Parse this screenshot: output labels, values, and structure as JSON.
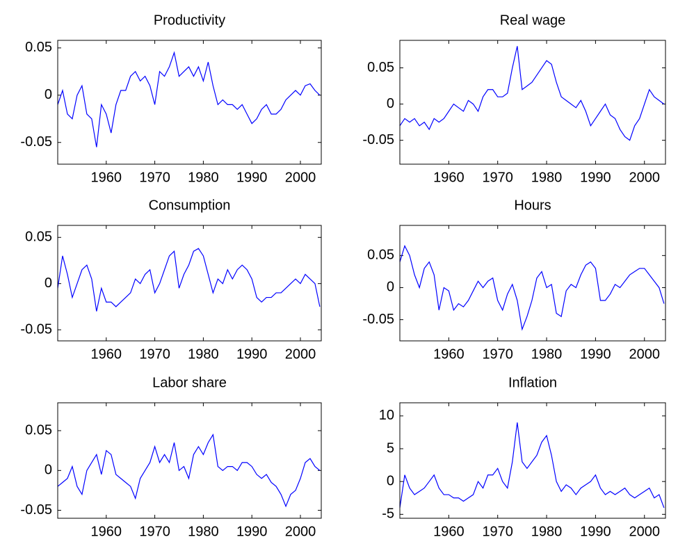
{
  "chart_data": [
    {
      "type": "line",
      "title": "Productivity",
      "color": "#0000ff",
      "x": [
        1950,
        1951,
        1952,
        1953,
        1954,
        1955,
        1956,
        1957,
        1958,
        1959,
        1960,
        1961,
        1962,
        1963,
        1964,
        1965,
        1966,
        1967,
        1968,
        1969,
        1970,
        1971,
        1972,
        1973,
        1974,
        1975,
        1976,
        1977,
        1978,
        1979,
        1980,
        1981,
        1982,
        1983,
        1984,
        1985,
        1986,
        1987,
        1988,
        1989,
        1990,
        1991,
        1992,
        1993,
        1994,
        1995,
        1996,
        1997,
        1998,
        1999,
        2000,
        2001,
        2002,
        2003,
        2004
      ],
      "values": [
        -0.01,
        0.005,
        -0.02,
        -0.025,
        0.0,
        0.01,
        -0.02,
        -0.025,
        -0.055,
        -0.01,
        -0.02,
        -0.04,
        -0.01,
        0.005,
        0.005,
        0.02,
        0.025,
        0.015,
        0.02,
        0.01,
        -0.01,
        0.025,
        0.02,
        0.03,
        0.045,
        0.02,
        0.025,
        0.03,
        0.02,
        0.03,
        0.015,
        0.035,
        0.01,
        -0.01,
        -0.005,
        -0.01,
        -0.01,
        -0.015,
        -0.01,
        -0.02,
        -0.03,
        -0.025,
        -0.015,
        -0.01,
        -0.02,
        -0.02,
        -0.015,
        -0.005,
        0.0,
        0.005,
        0.0,
        0.01,
        0.012,
        0.005,
        0.0
      ],
      "xlim": [
        1950,
        2004.3
      ],
      "xticks": [
        1960,
        1970,
        1980,
        1990,
        2000
      ],
      "ylim": [
        -0.073,
        0.058
      ],
      "yticks": [
        -0.05,
        0,
        0.05
      ]
    },
    {
      "type": "line",
      "title": "Real wage",
      "color": "#0000ff",
      "x": [
        1950,
        1951,
        1952,
        1953,
        1954,
        1955,
        1956,
        1957,
        1958,
        1959,
        1960,
        1961,
        1962,
        1963,
        1964,
        1965,
        1966,
        1967,
        1968,
        1969,
        1970,
        1971,
        1972,
        1973,
        1974,
        1975,
        1976,
        1977,
        1978,
        1979,
        1980,
        1981,
        1982,
        1983,
        1984,
        1985,
        1986,
        1987,
        1988,
        1989,
        1990,
        1991,
        1992,
        1993,
        1994,
        1995,
        1996,
        1997,
        1998,
        1999,
        2000,
        2001,
        2002,
        2003,
        2004
      ],
      "values": [
        -0.03,
        -0.02,
        -0.025,
        -0.02,
        -0.03,
        -0.025,
        -0.035,
        -0.02,
        -0.025,
        -0.02,
        -0.01,
        0.0,
        -0.005,
        -0.01,
        0.005,
        0.0,
        -0.01,
        0.01,
        0.02,
        0.02,
        0.01,
        0.01,
        0.015,
        0.05,
        0.08,
        0.02,
        0.025,
        0.03,
        0.04,
        0.05,
        0.06,
        0.055,
        0.03,
        0.01,
        0.005,
        0.0,
        -0.005,
        0.005,
        -0.01,
        -0.03,
        -0.02,
        -0.01,
        0.0,
        -0.015,
        -0.02,
        -0.035,
        -0.045,
        -0.05,
        -0.03,
        -0.02,
        0.0,
        0.02,
        0.01,
        0.005,
        0.0
      ],
      "xlim": [
        1950,
        2004.3
      ],
      "xticks": [
        1960,
        1970,
        1980,
        1990,
        2000
      ],
      "ylim": [
        -0.083,
        0.088
      ],
      "yticks": [
        -0.05,
        0,
        0.05
      ]
    },
    {
      "type": "line",
      "title": "Consumption",
      "color": "#0000ff",
      "x": [
        1950,
        1951,
        1952,
        1953,
        1954,
        1955,
        1956,
        1957,
        1958,
        1959,
        1960,
        1961,
        1962,
        1963,
        1964,
        1965,
        1966,
        1967,
        1968,
        1969,
        1970,
        1971,
        1972,
        1973,
        1974,
        1975,
        1976,
        1977,
        1978,
        1979,
        1980,
        1981,
        1982,
        1983,
        1984,
        1985,
        1986,
        1987,
        1988,
        1989,
        1990,
        1991,
        1992,
        1993,
        1994,
        1995,
        1996,
        1997,
        1998,
        1999,
        2000,
        2001,
        2002,
        2003,
        2004
      ],
      "values": [
        -0.005,
        0.03,
        0.01,
        -0.015,
        0.0,
        0.015,
        0.02,
        0.005,
        -0.03,
        -0.005,
        -0.02,
        -0.02,
        -0.025,
        -0.02,
        -0.015,
        -0.01,
        0.005,
        0.0,
        0.01,
        0.015,
        -0.01,
        0.0,
        0.015,
        0.03,
        0.035,
        -0.005,
        0.01,
        0.02,
        0.035,
        0.038,
        0.03,
        0.01,
        -0.01,
        0.005,
        0.0,
        0.015,
        0.005,
        0.015,
        0.02,
        0.015,
        0.005,
        -0.015,
        -0.02,
        -0.015,
        -0.015,
        -0.01,
        -0.01,
        -0.005,
        0.0,
        0.005,
        0.0,
        0.01,
        0.005,
        0.0,
        -0.025
      ],
      "xlim": [
        1950,
        2004.3
      ],
      "xticks": [
        1960,
        1970,
        1980,
        1990,
        2000
      ],
      "ylim": [
        -0.062,
        0.063
      ],
      "yticks": [
        -0.05,
        0,
        0.05
      ]
    },
    {
      "type": "line",
      "title": "Hours",
      "color": "#0000ff",
      "x": [
        1950,
        1951,
        1952,
        1953,
        1954,
        1955,
        1956,
        1957,
        1958,
        1959,
        1960,
        1961,
        1962,
        1963,
        1964,
        1965,
        1966,
        1967,
        1968,
        1969,
        1970,
        1971,
        1972,
        1973,
        1974,
        1975,
        1976,
        1977,
        1978,
        1979,
        1980,
        1981,
        1982,
        1983,
        1984,
        1985,
        1986,
        1987,
        1988,
        1989,
        1990,
        1991,
        1992,
        1993,
        1994,
        1995,
        1996,
        1997,
        1998,
        1999,
        2000,
        2001,
        2002,
        2003,
        2004
      ],
      "values": [
        0.04,
        0.065,
        0.05,
        0.02,
        0.0,
        0.03,
        0.04,
        0.02,
        -0.035,
        0.0,
        -0.005,
        -0.035,
        -0.025,
        -0.03,
        -0.02,
        -0.005,
        0.01,
        0.0,
        0.01,
        0.015,
        -0.02,
        -0.035,
        -0.01,
        0.005,
        -0.02,
        -0.065,
        -0.045,
        -0.02,
        0.015,
        0.025,
        0.0,
        0.005,
        -0.04,
        -0.045,
        -0.005,
        0.005,
        0.0,
        0.02,
        0.035,
        0.04,
        0.03,
        -0.02,
        -0.02,
        -0.01,
        0.005,
        0.0,
        0.01,
        0.02,
        0.025,
        0.03,
        0.03,
        0.02,
        0.01,
        0.0,
        -0.025
      ],
      "xlim": [
        1950,
        2004.3
      ],
      "xticks": [
        1960,
        1970,
        1980,
        1990,
        2000
      ],
      "ylim": [
        -0.083,
        0.097
      ],
      "yticks": [
        -0.05,
        0,
        0.05
      ]
    },
    {
      "type": "line",
      "title": "Labor share",
      "color": "#0000ff",
      "x": [
        1950,
        1951,
        1952,
        1953,
        1954,
        1955,
        1956,
        1957,
        1958,
        1959,
        1960,
        1961,
        1962,
        1963,
        1964,
        1965,
        1966,
        1967,
        1968,
        1969,
        1970,
        1971,
        1972,
        1973,
        1974,
        1975,
        1976,
        1977,
        1978,
        1979,
        1980,
        1981,
        1982,
        1983,
        1984,
        1985,
        1986,
        1987,
        1988,
        1989,
        1990,
        1991,
        1992,
        1993,
        1994,
        1995,
        1996,
        1997,
        1998,
        1999,
        2000,
        2001,
        2002,
        2003,
        2004
      ],
      "values": [
        -0.02,
        -0.015,
        -0.01,
        0.005,
        -0.02,
        -0.03,
        0.0,
        0.01,
        0.02,
        -0.005,
        0.025,
        0.02,
        -0.005,
        -0.01,
        -0.015,
        -0.02,
        -0.035,
        -0.01,
        0.0,
        0.01,
        0.03,
        0.01,
        0.02,
        0.01,
        0.035,
        0.0,
        0.005,
        -0.01,
        0.02,
        0.03,
        0.02,
        0.035,
        0.045,
        0.005,
        0.0,
        0.005,
        0.005,
        0.0,
        0.01,
        0.01,
        0.005,
        -0.005,
        -0.01,
        -0.005,
        -0.015,
        -0.02,
        -0.03,
        -0.045,
        -0.03,
        -0.025,
        -0.01,
        0.01,
        0.015,
        0.005,
        0.0
      ],
      "xlim": [
        1950,
        2004.3
      ],
      "xticks": [
        1960,
        1970,
        1980,
        1990,
        2000
      ],
      "ylim": [
        -0.06,
        0.085
      ],
      "yticks": [
        -0.05,
        0,
        0.05
      ]
    },
    {
      "type": "line",
      "title": "Inflation",
      "color": "#0000ff",
      "x": [
        1950,
        1951,
        1952,
        1953,
        1954,
        1955,
        1956,
        1957,
        1958,
        1959,
        1960,
        1961,
        1962,
        1963,
        1964,
        1965,
        1966,
        1967,
        1968,
        1969,
        1970,
        1971,
        1972,
        1973,
        1974,
        1975,
        1976,
        1977,
        1978,
        1979,
        1980,
        1981,
        1982,
        1983,
        1984,
        1985,
        1986,
        1987,
        1988,
        1989,
        1990,
        1991,
        1992,
        1993,
        1994,
        1995,
        1996,
        1997,
        1998,
        1999,
        2000,
        2001,
        2002,
        2003,
        2004
      ],
      "values": [
        -4,
        1,
        -1,
        -2,
        -1.5,
        -1,
        0,
        1,
        -1,
        -2,
        -2,
        -2.5,
        -2.5,
        -3,
        -2.5,
        -2,
        0,
        -1,
        1,
        1,
        2,
        0,
        -1,
        3,
        9,
        3,
        2,
        3,
        4,
        6,
        7,
        4,
        0,
        -1.5,
        -0.5,
        -1,
        -2,
        -1,
        -0.5,
        0,
        1,
        -1,
        -2,
        -1.5,
        -2,
        -1.5,
        -1,
        -2,
        -2.5,
        -2,
        -1.5,
        -1,
        -2.5,
        -2,
        -4
      ],
      "xlim": [
        1950,
        2004.3
      ],
      "xticks": [
        1960,
        1970,
        1980,
        1990,
        2000
      ],
      "ylim": [
        -5.6,
        12
      ],
      "yticks": [
        -5,
        0,
        5,
        10
      ]
    }
  ]
}
